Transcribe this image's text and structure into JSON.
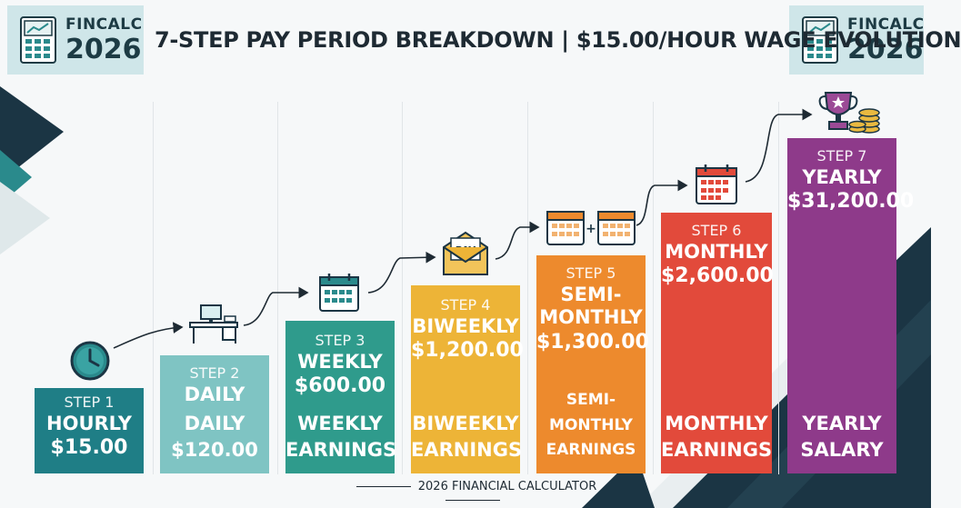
{
  "header": {
    "title": "7-STEP PAY PERIOD BREAKDOWN | $15.00/HOUR WAGE EVOLUTION",
    "logo_left": {
      "line1": "FINCALC",
      "line2": "2026"
    },
    "logo_right": {
      "line1": "FINCALC",
      "line2": "2026"
    }
  },
  "steps": [
    {
      "label": "STEP 1",
      "name": "HOURLY",
      "amount": "$15.00",
      "desc": "",
      "color": "#1f7e86",
      "icon": "clock-icon"
    },
    {
      "label": "STEP 2",
      "name": "DAILY",
      "amount": "",
      "desc": "DAILY\n$120.00",
      "color": "#7fc4c3",
      "icon": "desk-icon"
    },
    {
      "label": "STEP 3",
      "name": "WEEKLY",
      "amount": "$600.00",
      "desc": "WEEKLY\nEARNINGS",
      "color": "#2f9b8c",
      "icon": "calendar-icon"
    },
    {
      "label": "STEP 4",
      "name": "BIWEEKLY",
      "amount": "$1,200.00",
      "desc": "BIWEEKLY\nEARNINGS",
      "color": "#edb437",
      "icon": "pay-envelope-icon"
    },
    {
      "label": "STEP 5",
      "name": "SEMI-\nMONTHLY",
      "amount": "$1,300.00",
      "desc": "SEMI-MONTHLY\nEARNINGS",
      "color": "#ed8a2d",
      "icon": "two-calendars-icon"
    },
    {
      "label": "STEP 6",
      "name": "MONTHLY",
      "amount": "$2,600.00",
      "desc": "MONTHLY\nEARNINGS",
      "color": "#e24a3b",
      "icon": "calendar-icon"
    },
    {
      "label": "STEP 7",
      "name": "YEARLY",
      "amount": "$31,200.00",
      "desc": "YEARLY\nSALARY",
      "color": "#8e3a8a",
      "icon": "trophy-coins-icon"
    }
  ],
  "footer": {
    "text": "2026 FINANCIAL CALCULATOR"
  },
  "colors": {
    "dark_navy": "#1b3544",
    "teal": "#2a8a8c"
  }
}
